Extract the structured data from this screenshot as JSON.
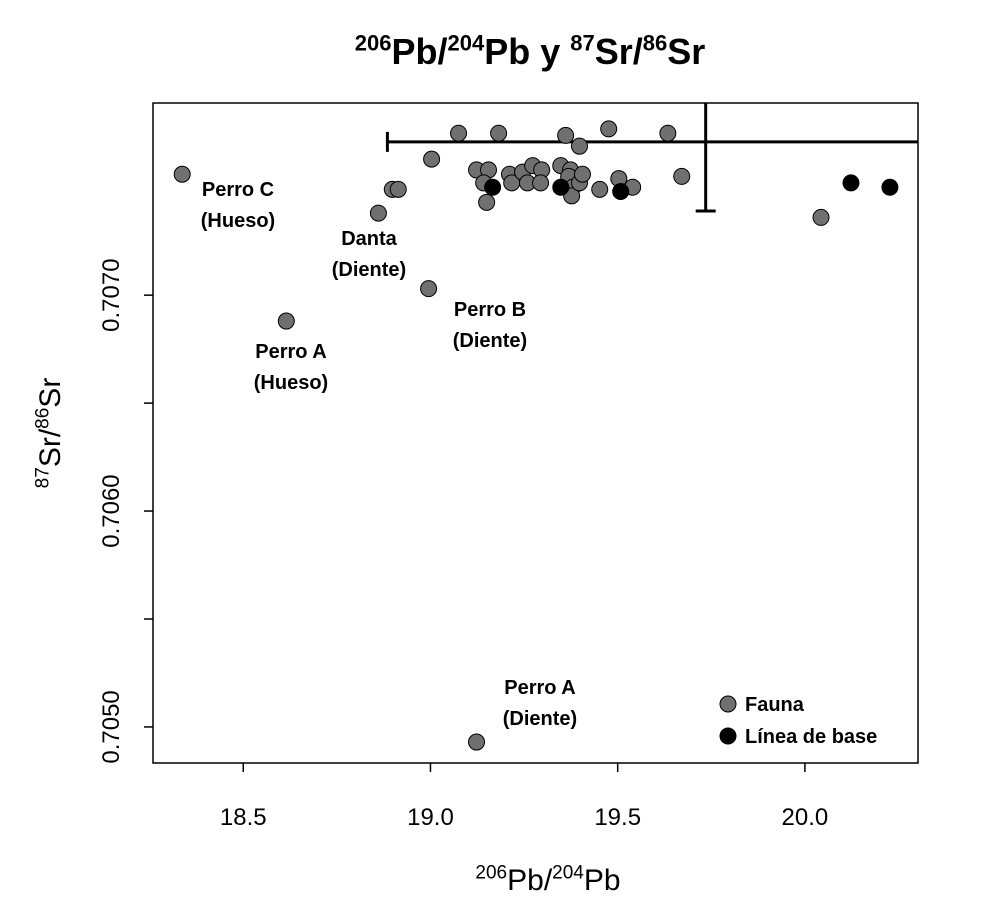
{
  "chart_data": {
    "type": "scatter",
    "title": [
      {
        "text": "206",
        "sup": true
      },
      {
        "text": "Pb/",
        "sup": false
      },
      {
        "text": "204",
        "sup": true
      },
      {
        "text": "Pb y ",
        "sup": false
      },
      {
        "text": "87",
        "sup": true
      },
      {
        "text": "Sr/",
        "sup": false
      },
      {
        "text": "86",
        "sup": true
      },
      {
        "text": "Sr",
        "sup": false
      }
    ],
    "xlabel": [
      {
        "text": "206",
        "sup": true
      },
      {
        "text": "Pb/",
        "sup": false
      },
      {
        "text": "204",
        "sup": true
      },
      {
        "text": "Pb",
        "sup": false
      }
    ],
    "ylabel": [
      {
        "text": "87",
        "sup": true
      },
      {
        "text": "Sr/",
        "sup": false
      },
      {
        "text": "86",
        "sup": true
      },
      {
        "text": "Sr",
        "sup": false
      }
    ],
    "xlim": [
      18.259,
      20.302
    ],
    "ylim": [
      0.704833,
      0.70789
    ],
    "xticks": [
      18.5,
      {
        "value": 19,
        "label": "19.0"
      },
      19.5,
      {
        "value": 20,
        "label": "20.0"
      }
    ],
    "yticks": [
      {
        "value": 0.705,
        "label": "0.7050"
      },
      {
        "value": 0.706,
        "label": "0.7060"
      },
      {
        "value": 0.707,
        "label": "0.7070"
      }
    ],
    "yticks_minor": [
      0.7055,
      0.7065
    ],
    "legend": "bottom-right",
    "series": [
      {
        "name": "Fauna",
        "color": "#707070",
        "x": [
          18.337,
          18.861,
          18.898,
          18.914,
          19.003,
          18.615,
          18.995,
          19.123,
          19.075,
          19.182,
          19.123,
          19.155,
          19.142,
          19.15,
          19.211,
          19.217,
          19.246,
          19.259,
          19.273,
          19.297,
          19.294,
          19.348,
          19.361,
          19.374,
          19.369,
          19.38,
          19.377,
          19.398,
          19.398,
          19.406,
          19.452,
          19.476,
          19.503,
          19.54,
          19.634,
          19.671,
          20.043
        ],
        "values": [
          0.70756,
          0.70738,
          0.70749,
          0.70749,
          0.70763,
          0.70688,
          0.70703,
          0.70493,
          0.70775,
          0.70775,
          0.70758,
          0.70758,
          0.70752,
          0.70743,
          0.70756,
          0.70752,
          0.70757,
          0.70752,
          0.7076,
          0.70758,
          0.70752,
          0.7076,
          0.70774,
          0.70758,
          0.70755,
          0.7075,
          0.70746,
          0.70769,
          0.70752,
          0.70756,
          0.70749,
          0.70777,
          0.70754,
          0.7075,
          0.70775,
          0.70755,
          0.70736
        ]
      },
      {
        "name": "Línea de base",
        "color": "#000000",
        "x": [
          19.166,
          19.348,
          19.508,
          20.123,
          20.227
        ],
        "values": [
          0.7075,
          0.7075,
          0.70748,
          0.70752,
          0.7075
        ]
      }
    ],
    "error_bar": {
      "x": 19.735,
      "y": 0.70771,
      "xerr": 0.85,
      "yerr": 0.00032
    },
    "annotations": [
      {
        "lines": [
          "Perro C",
          "(Hueso)"
        ]
      },
      {
        "lines": [
          "Danta",
          "(Diente)"
        ]
      },
      {
        "lines": [
          "Perro B",
          "(Diente)"
        ]
      },
      {
        "lines": [
          "Perro A",
          "(Hueso)"
        ]
      },
      {
        "lines": [
          "Perro A",
          "(Diente)"
        ]
      }
    ]
  }
}
